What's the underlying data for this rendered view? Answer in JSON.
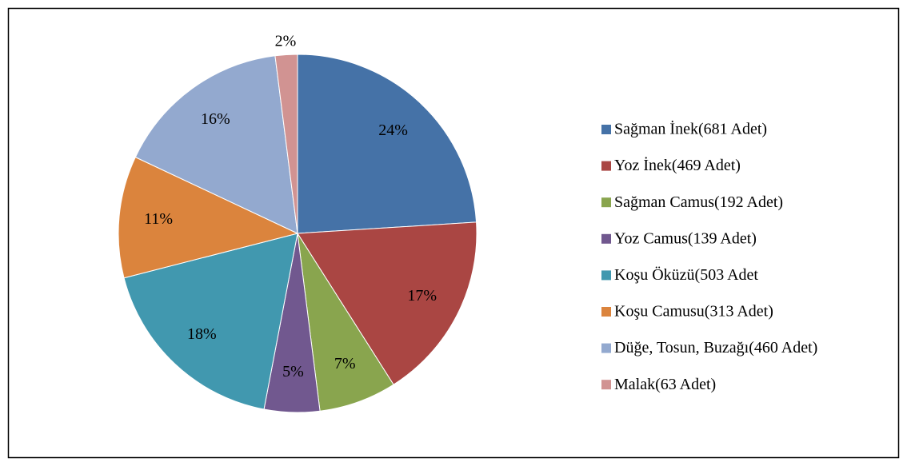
{
  "chart_data": {
    "type": "pie",
    "categories": [
      "Sağman İnek(681 Adet)",
      "Yoz İnek(469 Adet)",
      "Sağman Camus(192 Adet)",
      "Yoz Camus(139 Adet)",
      "Koşu Öküzü(503 Adet",
      "Koşu Camusu(313 Adet)",
      "Düğe, Tosun, Buzağı(460 Adet)",
      "Malak(63 Adet)"
    ],
    "values": [
      24,
      17,
      7,
      5,
      18,
      11,
      16,
      2
    ],
    "value_labels": [
      "24%",
      "17%",
      "7%",
      "5%",
      "18%",
      "11%",
      "16%",
      "2%"
    ],
    "colors": [
      "#4572a7",
      "#aa4643",
      "#89a54e",
      "#71588f",
      "#4198af",
      "#db843d",
      "#93a9cf",
      "#d19392"
    ],
    "legend": "right"
  }
}
